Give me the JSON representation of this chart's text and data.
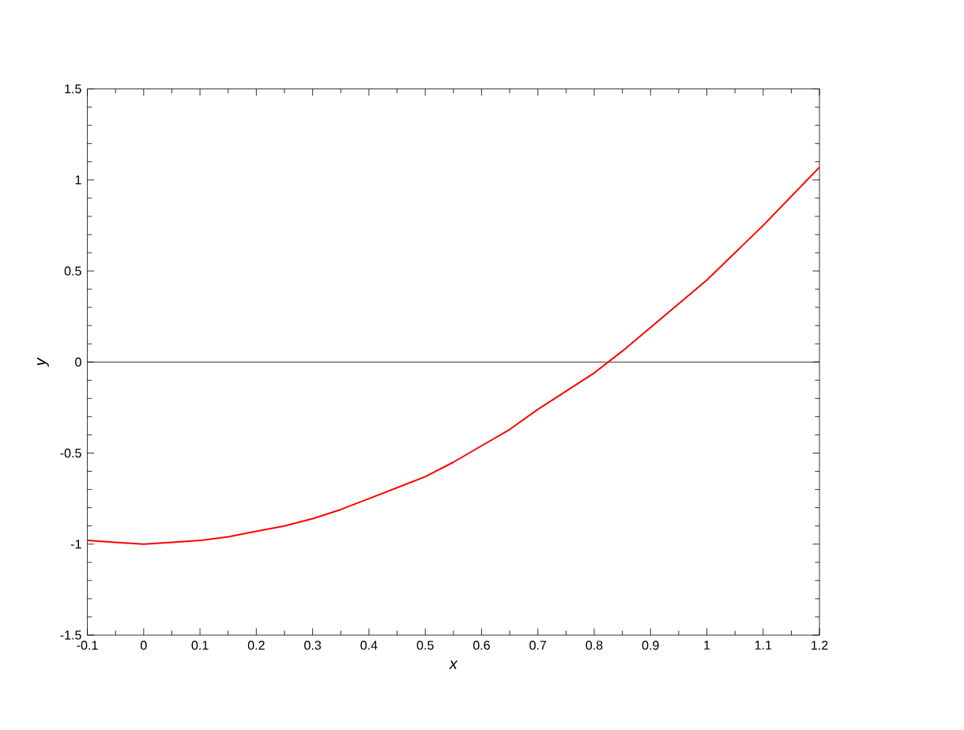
{
  "chart_data": {
    "type": "line",
    "xlabel": "x",
    "ylabel": "y",
    "x": [
      -0.1,
      -0.05,
      0,
      0.05,
      0.1,
      0.15,
      0.2,
      0.25,
      0.3,
      0.35,
      0.4,
      0.45,
      0.5,
      0.55,
      0.6,
      0.65,
      0.7,
      0.75,
      0.8,
      0.85,
      0.9,
      0.95,
      1.0,
      1.05,
      1.1,
      1.15,
      1.2
    ],
    "series": [
      {
        "color": "#ff0000",
        "values": [
          -0.98,
          -0.99,
          -1.0,
          -0.99,
          -0.98,
          -0.96,
          -0.93,
          -0.9,
          -0.86,
          -0.81,
          -0.75,
          -0.69,
          -0.63,
          -0.55,
          -0.46,
          -0.37,
          -0.26,
          -0.16,
          -0.06,
          0.06,
          0.19,
          0.32,
          0.45,
          0.6,
          0.75,
          0.91,
          1.07
        ]
      }
    ],
    "xlim": [
      -0.1,
      1.2
    ],
    "ylim": [
      -1.5,
      1.5
    ],
    "xticks": [
      -0.1,
      0,
      0.1,
      0.2,
      0.3,
      0.4,
      0.5,
      0.6,
      0.7,
      0.8,
      0.9,
      1,
      1.1,
      1.2
    ],
    "yticks": [
      -1.5,
      -1,
      -0.5,
      0,
      0.5,
      1,
      1.5
    ],
    "ref_lines": [
      {
        "axis": "y",
        "value": 0,
        "color": "#000000"
      }
    ],
    "grid": false,
    "marker": "none",
    "line_style": "solid"
  }
}
